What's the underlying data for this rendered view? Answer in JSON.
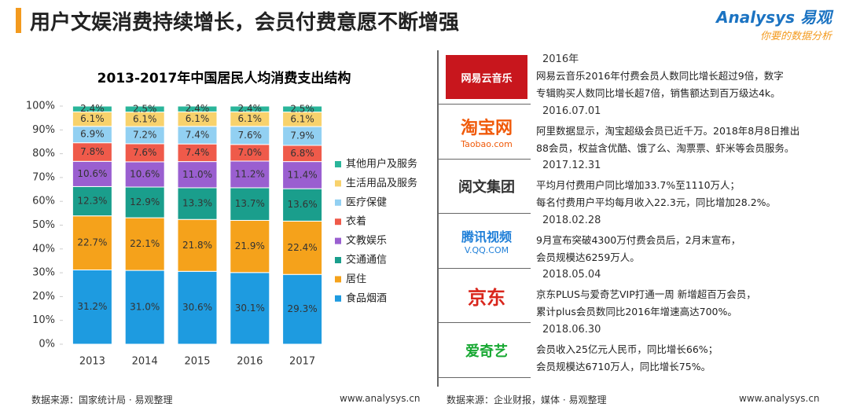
{
  "header": {
    "title": "用户文娱消费持续增长，会员付费意愿不断增强"
  },
  "logo": {
    "name": "Analysys 易观",
    "tagline": "你要的数据分析"
  },
  "chart_data": {
    "type": "stacked_bar",
    "title": "2013-2017年中国居民人均消费支出结构",
    "categories": [
      "2013",
      "2014",
      "2015",
      "2016",
      "2017"
    ],
    "ylim": [
      0,
      100
    ],
    "yticks": [
      {
        "value": 0,
        "label": "0%"
      },
      {
        "value": 10,
        "label": "10%"
      },
      {
        "value": 20,
        "label": "20%"
      },
      {
        "value": 30,
        "label": "30%"
      },
      {
        "value": 40,
        "label": "40%"
      },
      {
        "value": 50,
        "label": "50%"
      },
      {
        "value": 60,
        "label": "60%"
      },
      {
        "value": 70,
        "label": "70%"
      },
      {
        "value": 80,
        "label": "80%"
      },
      {
        "value": 90,
        "label": "90%"
      },
      {
        "value": 100,
        "label": "100%"
      }
    ],
    "legend": "right",
    "series": [
      {
        "name": "食品烟酒",
        "color": "#1e9be0",
        "values": [
          31.2,
          31.0,
          30.6,
          30.1,
          29.3
        ],
        "value_labels": [
          "31.2%",
          "31.0%",
          "30.6%",
          "30.1%",
          "29.3%"
        ]
      },
      {
        "name": "居住",
        "color": "#f5a21b",
        "values": [
          22.7,
          22.1,
          21.8,
          21.9,
          22.4
        ],
        "value_labels": [
          "22.7%",
          "22.1%",
          "21.8%",
          "21.9%",
          "22.4%"
        ]
      },
      {
        "name": "交通通信",
        "color": "#1a9e8c",
        "values": [
          12.3,
          12.9,
          13.3,
          13.7,
          13.6
        ],
        "value_labels": [
          "12.3%",
          "12.9%",
          "13.3%",
          "13.7%",
          "13.6%"
        ]
      },
      {
        "name": "文教娱乐",
        "color": "#9a5fd0",
        "values": [
          10.6,
          10.6,
          11.0,
          11.2,
          11.4
        ],
        "value_labels": [
          "10.6%",
          "10.6%",
          "11.0%",
          "11.2%",
          "11.4%"
        ]
      },
      {
        "name": "衣着",
        "color": "#ef5a4a",
        "values": [
          7.8,
          7.6,
          7.4,
          7.0,
          6.8
        ],
        "value_labels": [
          "7.8%",
          "7.6%",
          "7.4%",
          "7.0%",
          "6.8%"
        ]
      },
      {
        "name": "医疗保健",
        "color": "#92d0f2",
        "values": [
          6.9,
          7.2,
          7.4,
          7.6,
          7.9
        ],
        "value_labels": [
          "6.9%",
          "7.2%",
          "7.4%",
          "7.6%",
          "7.9%"
        ]
      },
      {
        "name": "生活用品及服务",
        "color": "#f8d26c",
        "values": [
          6.1,
          6.1,
          6.1,
          6.1,
          6.1
        ],
        "value_labels": [
          "6.1%",
          "6.1%",
          "6.1%",
          "6.1%",
          "6.1%"
        ]
      },
      {
        "name": "其他用户及服务",
        "color": "#2ab59a",
        "values": [
          2.4,
          2.5,
          2.4,
          2.4,
          2.5
        ],
        "value_labels": [
          "2.4%",
          "2.5%",
          "2.4%",
          "2.4%",
          "2.5%"
        ]
      }
    ]
  },
  "left_footer": {
    "source": "数据来源：国家统计局 · 易观整理",
    "url": "www.analysys.cn"
  },
  "timeline": [
    {
      "date": "2016年",
      "logo": {
        "text": "网易云音乐"
      },
      "lines": [
        "网易云音乐2016年付费会员人数同比增长超过9倍，数字",
        "专辑购买人数同比增长超7倍，销售额达到百万级达4k。"
      ]
    },
    {
      "date": "2016.07.01",
      "logo": {
        "text": "淘宝网",
        "sub": "Taobao.com"
      },
      "lines": [
        "阿里数据显示，淘宝超级会员已近千万。2018年8月8日推出",
        "88会员，权益含优酷、饿了么、淘票票、虾米等会员服务。"
      ]
    },
    {
      "date": "2017.12.31",
      "logo": {
        "text": "阅文集团"
      },
      "lines": [
        "平均月付费用户同比增加33.7%至1110万人；",
        "每名付费用户平均每月收入22.3元，同比增加28.2%。"
      ]
    },
    {
      "date": "2018.02.28",
      "logo": {
        "text": "腾讯视频",
        "sub": "V.QQ.COM"
      },
      "lines": [
        "9月宣布突破4300万付费会员后，2月末宣布，",
        "会员规模达6259万人。"
      ]
    },
    {
      "date": "2018.05.04",
      "logo": {
        "text": "京东"
      },
      "lines": [
        "京东PLUS与爱奇艺VIP打通一周 新增超百万会员，",
        "累计plus会员数同比2016年增速高达700%。"
      ]
    },
    {
      "date": "2018.06.30",
      "logo": {
        "text": "爱奇艺"
      },
      "lines": [
        "会员收入25亿元人民币，同比增长66%；",
        "会员规模达6710万人，同比增长75%。"
      ]
    }
  ],
  "right_footer": {
    "source": "数据来源：企业财报，媒体 · 易观整理",
    "url": "www.analysys.cn"
  }
}
